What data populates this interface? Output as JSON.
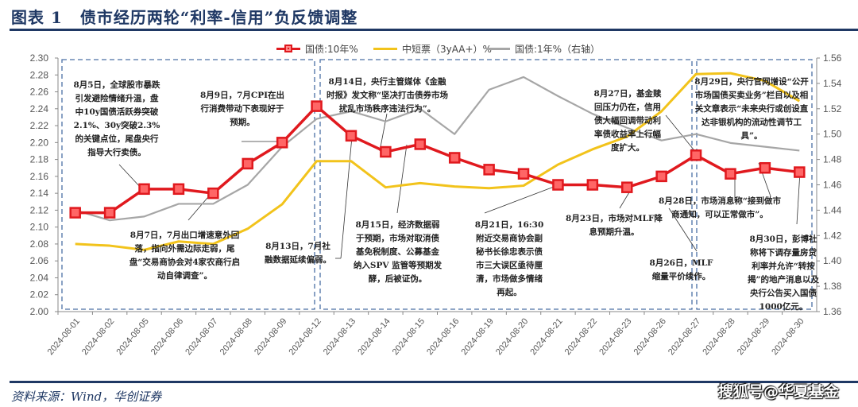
{
  "title": {
    "label": "图表",
    "number": "1",
    "text": "债市经历两轮“利率-信用”负反馈调整"
  },
  "source": "资料来源：Wind，华创证券",
  "watermark": "搜狐号@华夏基金",
  "chart_data": {
    "type": "line",
    "title": "债市经历两轮“利率-信用”负反馈调整",
    "legend_position": "top",
    "grid": false,
    "categories": [
      "2024-08-01",
      "2024-08-02",
      "2024-08-05",
      "2024-08-06",
      "2024-08-07",
      "2024-08-08",
      "2024-08-09",
      "2024-08-12",
      "2024-08-13",
      "2024-08-14",
      "2024-08-15",
      "2024-08-16",
      "2024-08-19",
      "2024-08-20",
      "2024-08-21",
      "2024-08-22",
      "2024-08-23",
      "2024-08-26",
      "2024-08-27",
      "2024-08-28",
      "2024-08-29",
      "2024-08-30"
    ],
    "y_left": {
      "min": 2.0,
      "max": 2.3,
      "ticks": [
        "2.00",
        "2.02",
        "2.04",
        "2.06",
        "2.08",
        "2.10",
        "2.12",
        "2.14",
        "2.16",
        "2.18",
        "2.20",
        "2.22",
        "2.24",
        "2.26",
        "2.28",
        "2.30"
      ]
    },
    "y_right": {
      "min": 1.36,
      "max": 1.56,
      "ticks": [
        "1.36",
        "1.38",
        "1.40",
        "1.42",
        "1.44",
        "1.46",
        "1.48",
        "1.50",
        "1.52",
        "1.54",
        "1.56"
      ]
    },
    "series": [
      {
        "name": "国债:10年%",
        "axis": "left",
        "color": "#e0191e",
        "markers": true,
        "values": [
          2.117,
          2.117,
          2.145,
          2.145,
          2.14,
          2.175,
          2.2,
          2.243,
          2.208,
          2.189,
          2.198,
          2.182,
          2.168,
          2.163,
          2.15,
          2.15,
          2.147,
          2.16,
          2.185,
          2.163,
          2.17,
          2.165
        ]
      },
      {
        "name": "中短票（3yAA+）%",
        "axis": "left",
        "color": "#f2c31b",
        "markers": false,
        "values": [
          2.08,
          2.078,
          2.073,
          2.083,
          2.08,
          2.098,
          2.127,
          2.178,
          2.178,
          2.147,
          2.152,
          2.148,
          2.146,
          2.149,
          2.174,
          2.192,
          2.207,
          2.237,
          2.281,
          2.282,
          2.273,
          2.249
        ]
      },
      {
        "name": "国债:1年%（右轴）",
        "axis": "right",
        "color": "#a6a6a6",
        "markers": false,
        "values": [
          1.44,
          1.432,
          1.435,
          1.445,
          1.445,
          1.46,
          1.49,
          1.512,
          1.518,
          1.51,
          1.52,
          1.5,
          1.535,
          1.545,
          1.53,
          1.516,
          1.505,
          1.495,
          1.5,
          1.493,
          1.49,
          1.487
        ]
      }
    ],
    "annotations": [
      "8月5日，全球股市暴跌引发避险情绪升温，盘中10y国债活跃券突破2.1%、30y突破2.3%的关键点位，尾盘央行指导大行卖债。",
      "8月9日，7月CPI在出行消费带动下表现好于预期。",
      "8月7日，7月出口增速意外回落，指向外需边际走弱，尾盘“交易商协会对4家农商行启动自律调查”。",
      "8月13日，7月社融数据延续偏弱。",
      "8月14日，央行主管媒体《金融时报》发文称“坚决打击债券市场扰乱市场秩序违法行为”。",
      "8月15日，经济数据弱于预期，市场对取消债基免税制度、公募基金纳入SPV 监管等预期发酵，后被证伪。",
      "8月21日，16:30附近交易商协会副秘书长徐忠表示债市三大误区亟待厘清，市场做多情绪再起。",
      "8月23日，市场对MLF降息预期升温。",
      "8月27日，基金赎回压力仍在，信用债大幅回调带动利率债收益率上行幅度扩大。",
      "8月29日，央行官网增设“公开市场国债买卖业务”栏目以及相关文章表示“未来央行或创设直达非银机构的流动性调节工具”。",
      "8月28日，市场消息称“接到做市商通知，可以正常做市”。",
      "8月26日，MLF缩量平价续作。",
      "8月30日，彭博社称将下调存量房贷利率并允许“转按揭”的地产消息以及央行公告买入国债1000亿元。"
    ]
  }
}
